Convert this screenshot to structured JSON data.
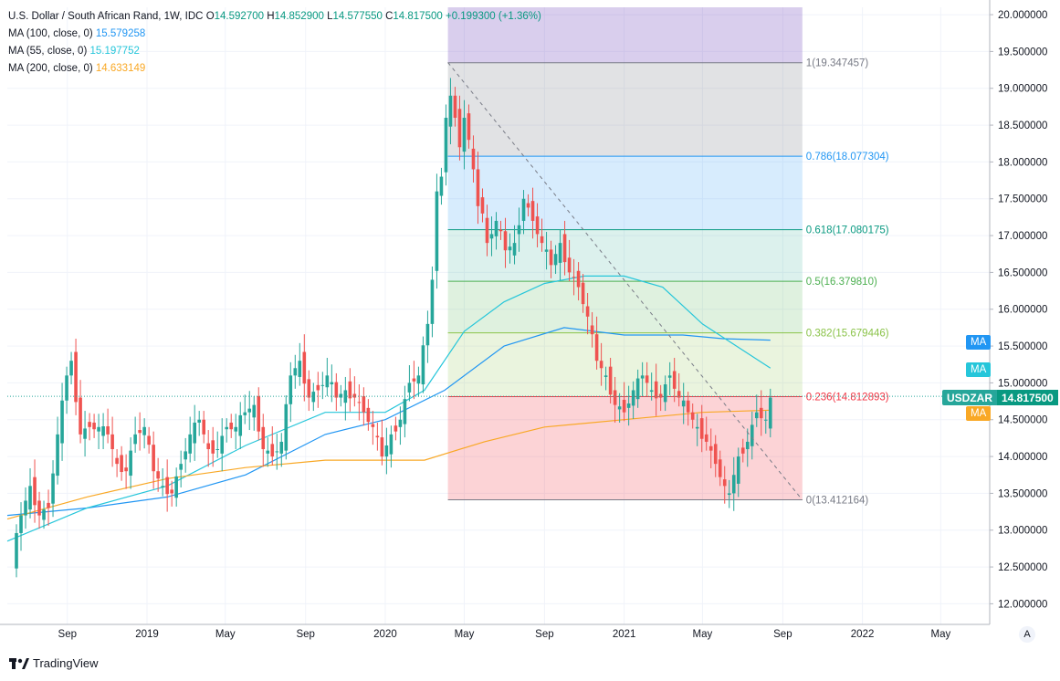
{
  "legend": {
    "title": "U.S. Dollar / South African Rand, 1W, IDC",
    "o_label": "O",
    "o_value": "14.592700",
    "h_label": "H",
    "h_value": "14.852900",
    "l_label": "L",
    "l_value": "14.577550",
    "c_label": "C",
    "c_value": "14.817500",
    "change": "+0.199300 (+1.36%)",
    "ma100_label": "MA (100, close, 0)",
    "ma100_value": "15.579258",
    "ma55_label": "MA (55, close, 0)",
    "ma55_value": "15.197752",
    "ma200_label": "MA (200, close, 0)",
    "ma200_value": "14.633149"
  },
  "badges": {
    "ma_label": "MA",
    "symbol": "USDZAR",
    "price": "14.817500"
  },
  "auto_label": "A",
  "brand_label": "TradingView",
  "colors": {
    "up": "#26a69a",
    "down": "#ef5350",
    "ma100": "#2196f3",
    "ma55": "#26c6da",
    "ma200": "#f9a825"
  },
  "chart_data": {
    "type": "candlestick",
    "symbol": "USDZAR",
    "y_ticks": [
      "20.000000",
      "19.500000",
      "19.000000",
      "18.500000",
      "18.000000",
      "17.500000",
      "17.000000",
      "16.500000",
      "16.000000",
      "15.500000",
      "15.000000",
      "14.500000",
      "14.000000",
      "13.500000",
      "13.000000",
      "12.500000",
      "12.000000"
    ],
    "ylim": [
      11.72,
      20.1
    ],
    "x_ticks": [
      {
        "label": "Sep",
        "x": "2018-09-01"
      },
      {
        "label": "2019",
        "x": "2019-01-01"
      },
      {
        "label": "May",
        "x": "2019-05-01"
      },
      {
        "label": "Sep",
        "x": "2019-09-01"
      },
      {
        "label": "2020",
        "x": "2020-01-01"
      },
      {
        "label": "May",
        "x": "2020-05-01"
      },
      {
        "label": "Sep",
        "x": "2020-09-01"
      },
      {
        "label": "2021",
        "x": "2021-01-01"
      },
      {
        "label": "May",
        "x": "2021-05-01"
      },
      {
        "label": "Sep",
        "x": "2021-09-01"
      },
      {
        "label": "2022",
        "x": "2022-01-01"
      },
      {
        "label": "May",
        "x": "2022-05-01"
      }
    ],
    "xlim": [
      "2018-06-01",
      "2022-07-15"
    ],
    "close_path": [
      [
        "2018-06-08",
        12.6
      ],
      [
        "2018-06-22",
        13.2
      ],
      [
        "2018-07-06",
        13.6
      ],
      [
        "2018-07-20",
        13.2
      ],
      [
        "2018-08-03",
        13.3
      ],
      [
        "2018-08-17",
        14.3
      ],
      [
        "2018-08-31",
        15.1
      ],
      [
        "2018-09-07",
        15.3
      ],
      [
        "2018-09-21",
        14.3
      ],
      [
        "2018-10-05",
        14.4
      ],
      [
        "2018-10-19",
        14.4
      ],
      [
        "2018-11-02",
        14.3
      ],
      [
        "2018-11-16",
        13.9
      ],
      [
        "2018-11-30",
        13.8
      ],
      [
        "2018-12-14",
        14.3
      ],
      [
        "2018-12-28",
        14.4
      ],
      [
        "2019-01-11",
        13.8
      ],
      [
        "2019-01-25",
        13.6
      ],
      [
        "2019-02-08",
        13.5
      ],
      [
        "2019-02-22",
        13.9
      ],
      [
        "2019-03-08",
        14.3
      ],
      [
        "2019-03-22",
        14.5
      ],
      [
        "2019-04-05",
        14.1
      ],
      [
        "2019-04-19",
        14.1
      ],
      [
        "2019-05-03",
        14.4
      ],
      [
        "2019-05-17",
        14.4
      ],
      [
        "2019-05-31",
        14.6
      ],
      [
        "2019-06-14",
        14.7
      ],
      [
        "2019-06-28",
        14.1
      ],
      [
        "2019-07-12",
        14.0
      ],
      [
        "2019-07-26",
        14.2
      ],
      [
        "2019-08-09",
        15.1
      ],
      [
        "2019-08-23",
        15.3
      ],
      [
        "2019-09-06",
        14.8
      ],
      [
        "2019-09-20",
        14.9
      ],
      [
        "2019-10-04",
        15.1
      ],
      [
        "2019-10-18",
        14.8
      ],
      [
        "2019-11-01",
        14.9
      ],
      [
        "2019-11-15",
        14.8
      ],
      [
        "2019-11-29",
        14.6
      ],
      [
        "2019-12-13",
        14.4
      ],
      [
        "2019-12-27",
        14.0
      ],
      [
        "2020-01-10",
        14.3
      ],
      [
        "2020-01-24",
        14.5
      ],
      [
        "2020-02-07",
        15.0
      ],
      [
        "2020-02-21",
        15.1
      ],
      [
        "2020-03-06",
        15.8
      ],
      [
        "2020-03-13",
        16.4
      ],
      [
        "2020-03-20",
        17.6
      ],
      [
        "2020-03-27",
        17.8
      ],
      [
        "2020-04-03",
        18.6
      ],
      [
        "2020-04-10",
        18.9
      ],
      [
        "2020-04-17",
        18.6
      ],
      [
        "2020-04-24",
        18.2
      ],
      [
        "2020-05-01",
        18.6
      ],
      [
        "2020-05-08",
        18.3
      ],
      [
        "2020-05-15",
        17.9
      ],
      [
        "2020-05-22",
        17.4
      ],
      [
        "2020-05-29",
        17.3
      ],
      [
        "2020-06-05",
        16.9
      ],
      [
        "2020-06-19",
        17.2
      ],
      [
        "2020-07-03",
        16.8
      ],
      [
        "2020-07-17",
        16.9
      ],
      [
        "2020-07-31",
        17.5
      ],
      [
        "2020-08-14",
        17.2
      ],
      [
        "2020-08-28",
        16.9
      ],
      [
        "2020-09-11",
        16.6
      ],
      [
        "2020-09-25",
        16.9
      ],
      [
        "2020-10-09",
        16.5
      ],
      [
        "2020-10-23",
        16.3
      ],
      [
        "2020-11-06",
        15.9
      ],
      [
        "2020-11-20",
        15.3
      ],
      [
        "2020-12-04",
        15.1
      ],
      [
        "2020-12-18",
        14.7
      ],
      [
        "2021-01-01",
        14.6
      ],
      [
        "2021-01-15",
        14.9
      ],
      [
        "2021-01-29",
        15.1
      ],
      [
        "2021-02-12",
        14.9
      ],
      [
        "2021-02-26",
        14.8
      ],
      [
        "2021-03-12",
        15.1
      ],
      [
        "2021-03-26",
        14.8
      ],
      [
        "2021-04-09",
        14.6
      ],
      [
        "2021-04-23",
        14.4
      ],
      [
        "2021-05-07",
        14.2
      ],
      [
        "2021-05-21",
        13.9
      ],
      [
        "2021-06-04",
        13.6
      ],
      [
        "2021-06-11",
        13.5
      ],
      [
        "2021-06-25",
        14.0
      ],
      [
        "2021-07-09",
        14.2
      ],
      [
        "2021-07-23",
        14.6
      ],
      [
        "2021-08-06",
        14.5
      ],
      [
        "2021-08-13",
        14.8
      ]
    ],
    "ma": [
      {
        "name": "MA (100, close, 0)",
        "color": "#2196f3",
        "points": [
          [
            "2018-06-01",
            13.2
          ],
          [
            "2018-10-01",
            13.3
          ],
          [
            "2019-02-01",
            13.45
          ],
          [
            "2019-06-01",
            13.75
          ],
          [
            "2019-10-01",
            14.3
          ],
          [
            "2020-01-01",
            14.5
          ],
          [
            "2020-04-01",
            14.9
          ],
          [
            "2020-07-01",
            15.5
          ],
          [
            "2020-10-01",
            15.75
          ],
          [
            "2021-01-01",
            15.65
          ],
          [
            "2021-04-01",
            15.65
          ],
          [
            "2021-06-01",
            15.6
          ],
          [
            "2021-08-13",
            15.58
          ]
        ]
      },
      {
        "name": "MA (55, close, 0)",
        "color": "#26c6da",
        "points": [
          [
            "2018-06-01",
            12.85
          ],
          [
            "2018-10-01",
            13.3
          ],
          [
            "2019-02-01",
            13.6
          ],
          [
            "2019-06-01",
            14.15
          ],
          [
            "2019-10-01",
            14.6
          ],
          [
            "2020-01-01",
            14.6
          ],
          [
            "2020-03-01",
            14.9
          ],
          [
            "2020-05-01",
            15.7
          ],
          [
            "2020-07-01",
            16.1
          ],
          [
            "2020-09-01",
            16.35
          ],
          [
            "2020-11-01",
            16.45
          ],
          [
            "2021-01-01",
            16.45
          ],
          [
            "2021-03-01",
            16.3
          ],
          [
            "2021-05-01",
            15.8
          ],
          [
            "2021-08-13",
            15.2
          ]
        ]
      },
      {
        "name": "MA (200, close, 0)",
        "color": "#f9a825",
        "points": [
          [
            "2018-06-01",
            13.15
          ],
          [
            "2018-10-01",
            13.45
          ],
          [
            "2019-02-01",
            13.7
          ],
          [
            "2019-06-01",
            13.85
          ],
          [
            "2019-10-01",
            13.95
          ],
          [
            "2020-01-01",
            13.95
          ],
          [
            "2020-03-01",
            13.95
          ],
          [
            "2020-06-01",
            14.2
          ],
          [
            "2020-09-01",
            14.4
          ],
          [
            "2021-01-01",
            14.5
          ],
          [
            "2021-05-01",
            14.6
          ],
          [
            "2021-08-13",
            14.63
          ]
        ]
      }
    ],
    "fibonacci": {
      "start": "2020-04-06",
      "end": "2021-10-01",
      "levels": [
        {
          "ratio": "1",
          "value": 19.347457,
          "label": "1(19.347457)",
          "color": "#787b86",
          "fill": "rgba(120,123,134,0.22)"
        },
        {
          "ratio": "0.786",
          "value": 18.077304,
          "label": "0.786(18.077304)",
          "color": "#2196f3",
          "fill": "rgba(33,150,243,0.18)"
        },
        {
          "ratio": "0.618",
          "value": 17.080175,
          "label": "0.618(17.080175)",
          "color": "#089981",
          "fill": "rgba(8,153,129,0.14)"
        },
        {
          "ratio": "0.5",
          "value": 16.37981,
          "label": "0.5(16.379810)",
          "color": "#4caf50",
          "fill": "rgba(76,175,80,0.18)"
        },
        {
          "ratio": "0.382",
          "value": 15.679446,
          "label": "0.382(15.679446)",
          "color": "#8bc34a",
          "fill": "rgba(139,195,74,0.18)"
        },
        {
          "ratio": "0.236",
          "value": 14.812893,
          "label": "0.236(14.812893)",
          "color": "#f23645",
          "fill": "rgba(242,54,69,0.22)"
        },
        {
          "ratio": "0",
          "value": 13.412164,
          "label": "0(13.412164)",
          "color": "#787b86",
          "fill": ""
        }
      ],
      "extension_fill": "rgba(103,58,183,0.25)"
    },
    "trend_line": {
      "from": [
        "2020-04-06",
        19.35
      ],
      "to": [
        "2021-10-01",
        13.41
      ]
    },
    "last_price": 14.8175,
    "grid": true
  }
}
